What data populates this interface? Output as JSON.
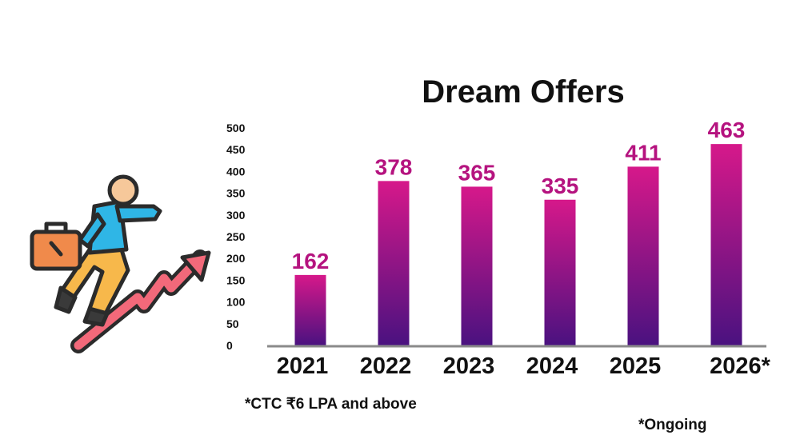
{
  "chart_data": {
    "type": "bar",
    "title": "Dream Offers",
    "categories": [
      "2021",
      "2022",
      "2023",
      "2024",
      "2025",
      "2026*"
    ],
    "values": [
      162,
      378,
      365,
      335,
      411,
      463
    ],
    "yticks": [
      "0",
      "50",
      "100",
      "150",
      "200",
      "250",
      "300",
      "350",
      "400",
      "450",
      "500"
    ],
    "ylim": [
      0,
      500
    ],
    "xlabel": "",
    "ylabel": "",
    "grid": false,
    "legend": false
  },
  "footnotes": {
    "ctc": "*CTC ₹6 LPA and above",
    "ongoing": "*Ongoing"
  },
  "colors": {
    "bar_top": "#d6188a",
    "bar_bottom": "#4a1280",
    "label": "#b5137f",
    "axis": "#8a8a8a"
  },
  "illustration": {
    "icon": "businessman-climbing-growth-arrow-icon"
  }
}
